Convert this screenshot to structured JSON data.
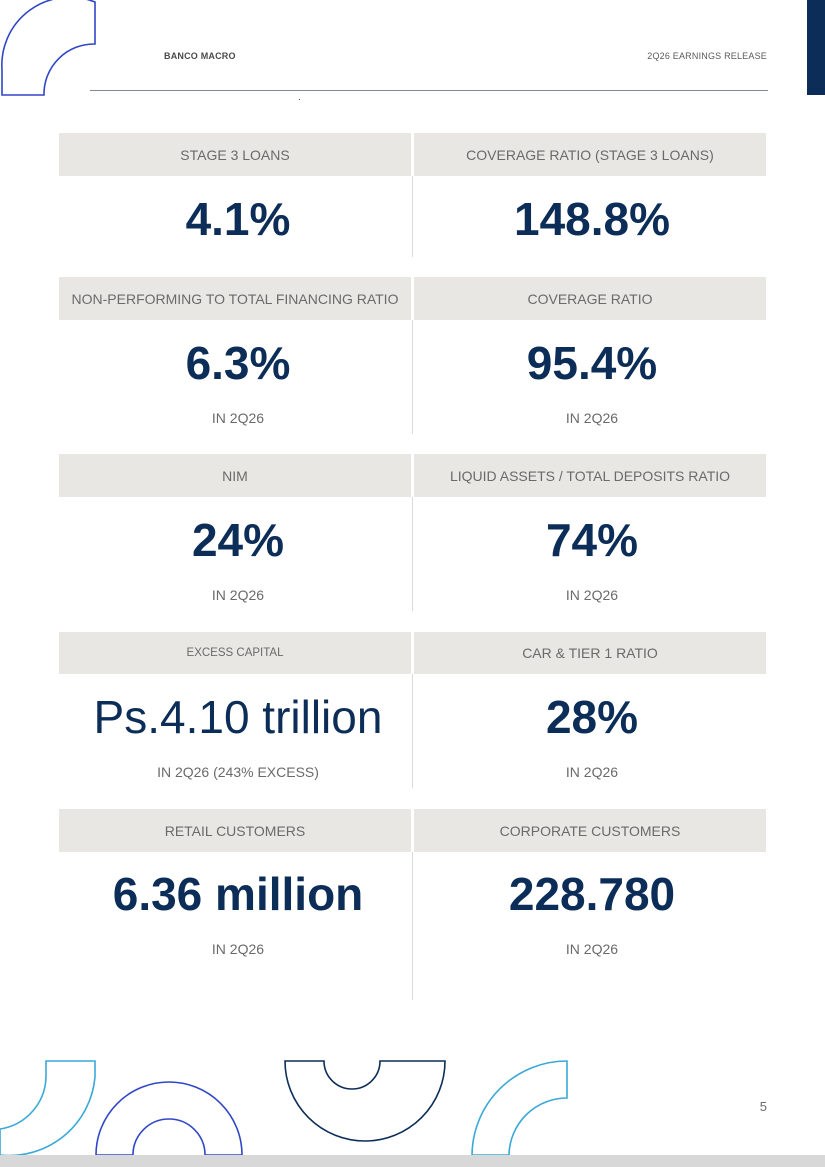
{
  "header": {
    "brand": "BANCO MACRO",
    "release": "2Q26 EARNINGS RELEASE"
  },
  "metrics": [
    {
      "label": "STAGE 3 LOANS",
      "value": "4.1%",
      "sub": ""
    },
    {
      "label": "COVERAGE RATIO (STAGE 3 LOANS)",
      "value": "148.8%",
      "sub": ""
    },
    {
      "label": "NON-PERFORMING TO TOTAL FINANCING RATIO",
      "value": "6.3%",
      "sub": "IN 2Q26"
    },
    {
      "label": "COVERAGE RATIO",
      "value": "95.4%",
      "sub": "IN 2Q26"
    },
    {
      "label": "NIM",
      "value": "24%",
      "sub": "IN 2Q26"
    },
    {
      "label": "LIQUID ASSETS / TOTAL DEPOSITS RATIO",
      "value": "74%",
      "sub": "IN 2Q26"
    },
    {
      "label": "EXCESS CAPITAL",
      "value": "Ps.4.10 trillion",
      "sub": "IN 2Q26 (243% EXCESS)"
    },
    {
      "label": "CAR & TIER 1 RATIO",
      "value": "28%",
      "sub": "IN 2Q26"
    },
    {
      "label": "RETAIL CUSTOMERS",
      "value": "6.36 million",
      "sub": "IN 2Q26"
    },
    {
      "label": "CORPORATE CUSTOMERS",
      "value": "228.780",
      "sub": "IN 2Q26"
    }
  ],
  "footer": {
    "page_number": "5"
  },
  "colors": {
    "navy": "#0b2d57",
    "label_bg": "#e8e7e4",
    "cyan": "#3aa8d8",
    "blue": "#3046c8"
  }
}
